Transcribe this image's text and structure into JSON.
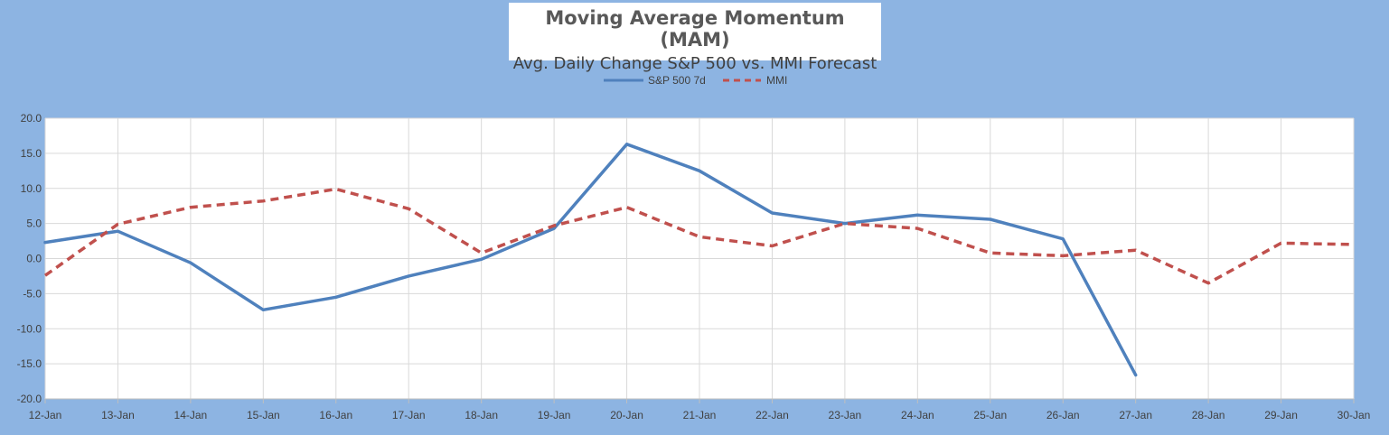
{
  "chart_data": {
    "type": "line",
    "title": "Moving Average Momentum (MAM)",
    "subtitle": "Avg. Daily Change S&P 500 vs. MMI Forecast",
    "xlabel": "",
    "ylabel": "",
    "categories": [
      "12-Jan",
      "13-Jan",
      "14-Jan",
      "15-Jan",
      "16-Jan",
      "17-Jan",
      "18-Jan",
      "19-Jan",
      "20-Jan",
      "21-Jan",
      "22-Jan",
      "23-Jan",
      "24-Jan",
      "25-Jan",
      "26-Jan",
      "27-Jan",
      "28-Jan",
      "29-Jan",
      "30-Jan"
    ],
    "ylim": [
      -20,
      20
    ],
    "yticks": [
      -20,
      -15,
      -10,
      -5,
      0,
      5,
      10,
      15,
      20
    ],
    "ytick_labels": [
      "-20.0",
      "-15.0",
      "-10.0",
      "-5.0",
      "0.0",
      "5.0",
      "10.0",
      "15.0",
      "20.0"
    ],
    "grid": true,
    "legend_position": "top-center",
    "series": [
      {
        "name": "S&P 500 7d",
        "style": "solid",
        "color": "#4f81bd",
        "values": [
          2.3,
          3.9,
          -0.6,
          -7.3,
          -5.5,
          -2.5,
          -0.1,
          4.3,
          16.3,
          12.5,
          6.5,
          5.0,
          6.2,
          5.6,
          2.8,
          -16.6,
          null,
          null,
          null
        ]
      },
      {
        "name": "MMI",
        "style": "dashed",
        "color": "#c0504d",
        "values": [
          -2.4,
          4.9,
          7.3,
          8.2,
          9.9,
          7.1,
          0.8,
          4.7,
          7.3,
          3.1,
          1.8,
          5.0,
          4.3,
          0.8,
          0.4,
          1.2,
          -3.5,
          2.2,
          2.0
        ]
      }
    ]
  }
}
